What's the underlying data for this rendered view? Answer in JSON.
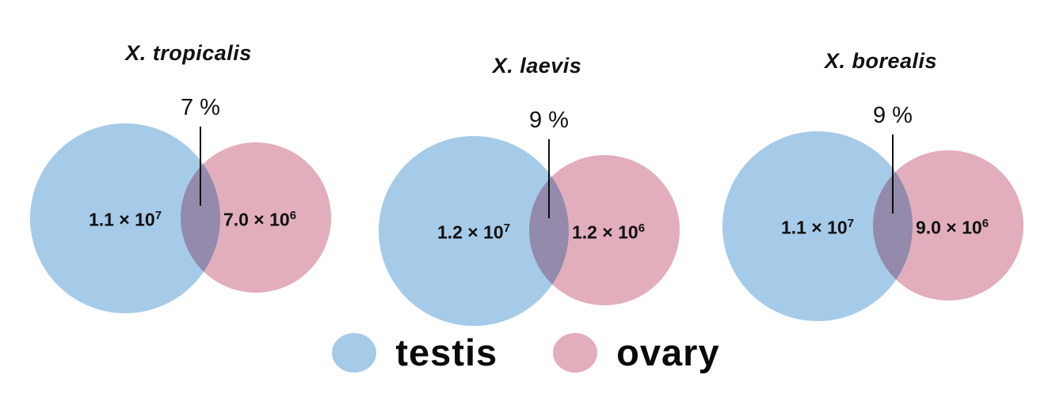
{
  "figure": {
    "panels": [
      {
        "title": "X. tropicalis",
        "overlap_label": "7 %",
        "testis_value": {
          "base": "1.1 × 10",
          "exp": "7"
        },
        "ovary_value": {
          "base": "7.0 × 10",
          "exp": "6"
        }
      },
      {
        "title": "X. laevis",
        "overlap_label": "9 %",
        "testis_value": {
          "base": "1.2 × 10",
          "exp": "7"
        },
        "ovary_value": {
          "base": "1.2 × 10",
          "exp": "6"
        }
      },
      {
        "title": "X. borealis",
        "overlap_label": "9 %",
        "testis_value": {
          "base": "1.1 × 10",
          "exp": "7"
        },
        "ovary_value": {
          "base": "9.0 × 10",
          "exp": "6"
        }
      }
    ],
    "legend": {
      "items": [
        {
          "label": "testis",
          "color": "#a6cbe9"
        },
        {
          "label": "ovary",
          "color": "#e2aebc"
        }
      ]
    }
  },
  "chart_data": {
    "type": "venn",
    "diagrams": [
      {
        "title": "X. tropicalis",
        "sets": [
          {
            "name": "testis",
            "value": 11000000,
            "label": "1.1 × 10^7"
          },
          {
            "name": "ovary",
            "value": 7000000,
            "label": "7.0 × 10^6"
          }
        ],
        "overlap_percent": 7
      },
      {
        "title": "X. laevis",
        "sets": [
          {
            "name": "testis",
            "value": 12000000,
            "label": "1.2 × 10^7"
          },
          {
            "name": "ovary",
            "value": 1200000,
            "label": "1.2 × 10^6"
          }
        ],
        "overlap_percent": 9
      },
      {
        "title": "X. borealis",
        "sets": [
          {
            "name": "testis",
            "value": 11000000,
            "label": "1.1 × 10^7"
          },
          {
            "name": "ovary",
            "value": 9000000,
            "label": "9.0 × 10^6"
          }
        ],
        "overlap_percent": 9
      }
    ],
    "legend": [
      "testis",
      "ovary"
    ],
    "legend_position": "bottom",
    "colors": {
      "testis": "#a6cbe9",
      "ovary": "#e2aebc"
    }
  }
}
